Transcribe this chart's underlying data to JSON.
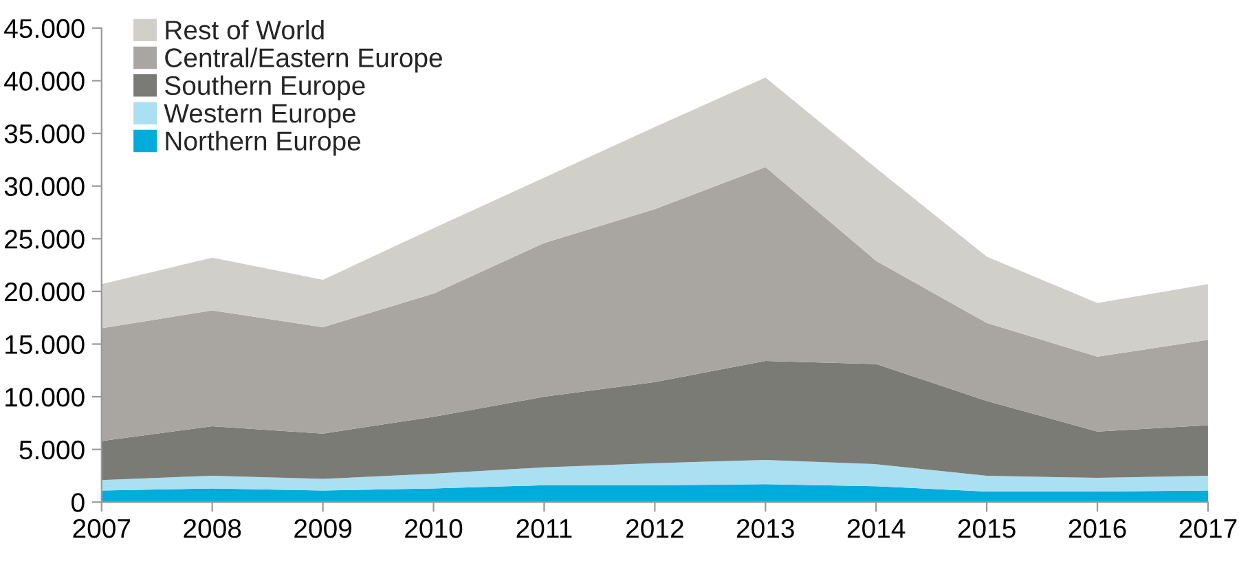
{
  "chart_data": {
    "type": "area",
    "stacked": true,
    "x": [
      2007,
      2008,
      2009,
      2010,
      2011,
      2012,
      2013,
      2014,
      2015,
      2016,
      2017
    ],
    "series": [
      {
        "name": "Northern Europe",
        "color": "#00acdc",
        "values": [
          1100,
          1300,
          1100,
          1300,
          1600,
          1600,
          1700,
          1500,
          1000,
          1000,
          1100
        ]
      },
      {
        "name": "Western Europe",
        "color": "#abdff2",
        "values": [
          1000,
          1200,
          1100,
          1400,
          1700,
          2100,
          2300,
          2100,
          1500,
          1300,
          1400
        ]
      },
      {
        "name": "Southern Europe",
        "color": "#7b7b76",
        "values": [
          3700,
          4700,
          4300,
          5400,
          6700,
          7700,
          9400,
          9500,
          7100,
          4400,
          4800
        ]
      },
      {
        "name": "Central/Eastern Europe",
        "color": "#a9a6a1",
        "values": [
          10700,
          11000,
          10100,
          11700,
          14600,
          16400,
          18400,
          9800,
          7400,
          7100,
          8100
        ]
      },
      {
        "name": "Rest of World",
        "color": "#d1cfca",
        "values": [
          4200,
          5000,
          4500,
          6200,
          6200,
          7800,
          8500,
          8800,
          6300,
          5100,
          5300
        ]
      }
    ],
    "xlim": [
      2007,
      2017
    ],
    "xticks": [
      2007,
      2008,
      2009,
      2010,
      2011,
      2012,
      2013,
      2014,
      2015,
      2016,
      2017
    ],
    "ylim": [
      0,
      45000
    ],
    "yticks": [
      0,
      {
        "value": 5000,
        "label": "5.000"
      },
      {
        "value": 10000,
        "label": "10.000"
      },
      {
        "value": 15000,
        "label": "15.000"
      },
      {
        "value": 20000,
        "label": "20.000"
      },
      {
        "value": 25000,
        "label": "25.000"
      },
      {
        "value": 30000,
        "label": "30.000"
      },
      {
        "value": 35000,
        "label": "35.000"
      },
      {
        "value": 40000,
        "label": "40.000"
      },
      {
        "value": 45000,
        "label": "45.000"
      }
    ],
    "grid": false,
    "legend": "top left"
  }
}
